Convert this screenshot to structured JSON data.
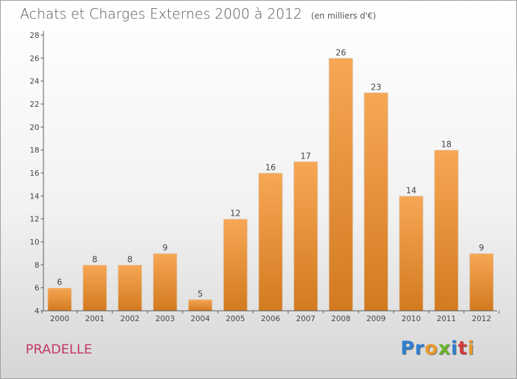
{
  "header": {
    "title": "Achats et Charges Externes 2000 à 2012",
    "unit": "(en milliers d'€)"
  },
  "footer": {
    "location": "PRADELLE",
    "logo": "Proxiti",
    "logo_colors": [
      "#2f7fd0",
      "#2f7fd0",
      "#e89a2c",
      "#6ab42c",
      "#2f7fd0",
      "#d63a3a",
      "#e89a2c"
    ]
  },
  "colors": {
    "bar_top": "#f7a755",
    "bar_bottom": "#d27a20",
    "bar_edge": "#e0e0e0",
    "axis": "#555555",
    "text": "#444444"
  },
  "chart_data": {
    "type": "bar",
    "categories": [
      "2000",
      "2001",
      "2002",
      "2003",
      "2004",
      "2005",
      "2006",
      "2007",
      "2008",
      "2009",
      "2010",
      "2011",
      "2012"
    ],
    "values": [
      6,
      8,
      8,
      9,
      5,
      12,
      16,
      17,
      26,
      23,
      14,
      18,
      9
    ],
    "data_labels": [
      "6",
      "8",
      "8",
      "9",
      "5",
      "12",
      "16",
      "17",
      "26",
      "23",
      "14",
      "18",
      "9"
    ],
    "yticks": [
      "4",
      "6",
      "8",
      "10",
      "12",
      "14",
      "16",
      "18",
      "20",
      "22",
      "24",
      "26",
      "28"
    ],
    "ylim": [
      4,
      28
    ],
    "title": "Achats et Charges Externes 2000 à 2012",
    "xlabel": "",
    "ylabel": "",
    "grid": false,
    "legend": "none"
  }
}
